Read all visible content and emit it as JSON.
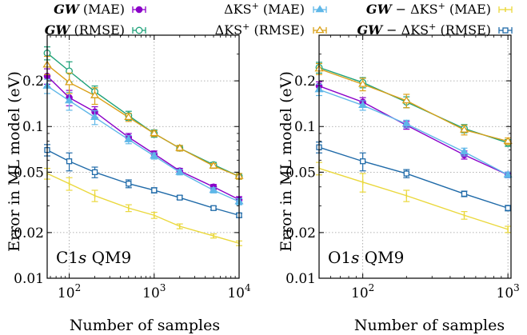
{
  "chart_data": [
    {
      "type": "line",
      "title": "C1s QM9",
      "xlabel": "Number of samples",
      "ylabel": "Error in ML model (eV)",
      "xscale": "log",
      "yscale": "log",
      "xlim": [
        55,
        10000
      ],
      "ylim": [
        0.01,
        0.4
      ],
      "xticks": [
        {
          "v": 100,
          "b": "10",
          "e": "2"
        },
        {
          "v": 1000,
          "b": "10",
          "e": "3"
        },
        {
          "v": 10000,
          "b": "10",
          "e": "4"
        }
      ],
      "yticks": [
        "0.01",
        "0.02",
        "0.05",
        "0.1",
        "0.2"
      ],
      "grid": true,
      "x": [
        55,
        100,
        200,
        500,
        1000,
        2000,
        5000,
        10000
      ],
      "series": [
        {
          "name": "GW (MAE)",
          "color": "#8b00c8",
          "marker": "circle-filled",
          "values": [
            0.215,
            0.155,
            0.125,
            0.085,
            0.066,
            0.051,
            0.04,
            0.033
          ],
          "err": [
            0.025,
            0.018,
            0.01,
            0.005,
            0.003,
            0.002,
            0.0015,
            0.0015
          ]
        },
        {
          "name": "GW (RMSE)",
          "color": "#1ea27a",
          "marker": "circle-open",
          "values": [
            0.305,
            0.232,
            0.17,
            0.118,
            0.09,
            0.072,
            0.056,
            0.047
          ],
          "err": [
            0.03,
            0.035,
            0.015,
            0.008,
            0.005,
            0.003,
            0.002,
            0.002
          ]
        },
        {
          "name": "ΔKS+ (MAE)",
          "color": "#5fb7e8",
          "marker": "triangle-filled",
          "values": [
            0.185,
            0.148,
            0.115,
            0.082,
            0.064,
            0.05,
            0.038,
            0.032
          ],
          "err": [
            0.02,
            0.02,
            0.012,
            0.005,
            0.003,
            0.002,
            0.0015,
            0.0015
          ]
        },
        {
          "name": "ΔKS+ (RMSE)",
          "color": "#d9a018",
          "marker": "triangle-open",
          "values": [
            0.255,
            0.195,
            0.16,
            0.115,
            0.09,
            0.072,
            0.055,
            0.047
          ],
          "err": [
            0.035,
            0.03,
            0.02,
            0.007,
            0.004,
            0.003,
            0.002,
            0.002
          ]
        },
        {
          "name": "GW − ΔKS+ (MAE)",
          "color": "#ead83c",
          "marker": "tick",
          "values": [
            0.049,
            0.042,
            0.035,
            0.029,
            0.026,
            0.022,
            0.019,
            0.017
          ],
          "err": [
            0.004,
            0.004,
            0.003,
            0.0015,
            0.0012,
            0.0008,
            0.0006,
            0.0006
          ]
        },
        {
          "name": "GW − ΔKS+ (RMSE)",
          "color": "#1f6aa8",
          "marker": "square-open",
          "values": [
            0.07,
            0.059,
            0.05,
            0.042,
            0.038,
            0.034,
            0.029,
            0.026
          ],
          "err": [
            0.006,
            0.008,
            0.004,
            0.0025,
            0.0015,
            0.001,
            0.0008,
            0.0008
          ]
        }
      ]
    },
    {
      "type": "line",
      "title": "O1s QM9",
      "xlabel": "Number of samples",
      "ylabel": "Error in ML model (eV)",
      "xscale": "log",
      "yscale": "log",
      "xlim": [
        50,
        1050
      ],
      "ylim": [
        0.01,
        0.4
      ],
      "xticks": [
        {
          "v": 100,
          "b": "10",
          "e": "2"
        },
        {
          "v": 1000,
          "b": "10",
          "e": "3"
        }
      ],
      "yticks": [
        "0.01",
        "0.02",
        "0.05",
        "0.1",
        "0.2"
      ],
      "grid": true,
      "x": [
        50,
        100,
        200,
        500,
        1000
      ],
      "series": [
        {
          "name": "GW (MAE)",
          "color": "#8b00c8",
          "marker": "circle-filled",
          "values": [
            0.185,
            0.145,
            0.102,
            0.065,
            0.048
          ],
          "err": [
            0.012,
            0.01,
            0.006,
            0.004,
            0.002
          ]
        },
        {
          "name": "GW (RMSE)",
          "color": "#1ea27a",
          "marker": "circle-open",
          "values": [
            0.245,
            0.195,
            0.145,
            0.097,
            0.078
          ],
          "err": [
            0.02,
            0.015,
            0.012,
            0.006,
            0.004
          ]
        },
        {
          "name": "ΔKS+ (MAE)",
          "color": "#5fb7e8",
          "marker": "triangle-filled",
          "values": [
            0.175,
            0.138,
            0.104,
            0.068,
            0.048
          ],
          "err": [
            0.015,
            0.01,
            0.006,
            0.004,
            0.002
          ]
        },
        {
          "name": "ΔKS+ (RMSE)",
          "color": "#d9a018",
          "marker": "triangle-open",
          "values": [
            0.24,
            0.19,
            0.148,
            0.095,
            0.08
          ],
          "err": [
            0.02,
            0.018,
            0.015,
            0.007,
            0.004
          ]
        },
        {
          "name": "GW − ΔKS+ (MAE)",
          "color": "#ead83c",
          "marker": "tick",
          "values": [
            0.053,
            0.043,
            0.035,
            0.026,
            0.021
          ],
          "err": [
            0.005,
            0.006,
            0.003,
            0.0015,
            0.001
          ]
        },
        {
          "name": "GW − ΔKS+ (RMSE)",
          "color": "#1f6aa8",
          "marker": "square-open",
          "values": [
            0.073,
            0.059,
            0.049,
            0.036,
            0.029
          ],
          "err": [
            0.006,
            0.008,
            0.003,
            0.0015,
            0.0012
          ]
        }
      ]
    }
  ],
  "legend": {
    "placement": "top",
    "entries": [
      {
        "prefix": "GW",
        "core": "",
        "sup": "",
        "suffix": " (MAE)",
        "color": "#8b00c8",
        "marker": "circle-filled"
      },
      {
        "prefix": "GW",
        "core": "",
        "sup": "",
        "suffix": " (RMSE)",
        "color": "#1ea27a",
        "marker": "circle-open"
      },
      {
        "prefix": "",
        "core": "ΔKS",
        "sup": "+",
        "suffix": " (MAE)",
        "color": "#5fb7e8",
        "marker": "triangle-filled"
      },
      {
        "prefix": "",
        "core": "ΔKS",
        "sup": "+",
        "suffix": " (RMSE)",
        "color": "#d9a018",
        "marker": "triangle-open"
      },
      {
        "prefix": "GW",
        "core": " − ΔKS",
        "sup": "+",
        "suffix": " (MAE)",
        "color": "#ead83c",
        "marker": "tick"
      },
      {
        "prefix": "GW",
        "core": " − ΔKS",
        "sup": "+",
        "suffix": " (RMSE)",
        "color": "#1f6aa8",
        "marker": "square-open"
      }
    ]
  }
}
